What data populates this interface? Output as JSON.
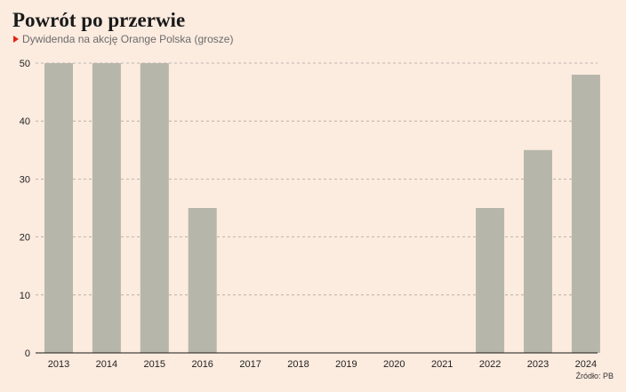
{
  "header": {
    "title": "Powrót po przerwie",
    "subtitle": "Dywidenda na akcję Orange Polska (grosze)"
  },
  "footer": {
    "source": "Źródło: PB"
  },
  "colors": {
    "background": "#fcebdf",
    "bar": "#b7b6aa",
    "marker": "#e2231a",
    "grid": "#a9a59e"
  },
  "chart_data": {
    "type": "bar",
    "categories": [
      "2013",
      "2014",
      "2015",
      "2016",
      "2017",
      "2018",
      "2019",
      "2020",
      "2021",
      "2022",
      "2023",
      "2024"
    ],
    "values": [
      50,
      50,
      50,
      25,
      0,
      0,
      0,
      0,
      0,
      25,
      35,
      48
    ],
    "title": "Powrót po przerwie",
    "subtitle": "Dywidenda na akcję Orange Polska (grosze)",
    "xlabel": "",
    "ylabel": "",
    "ylim": [
      0,
      50
    ],
    "yticks": [
      0,
      10,
      20,
      30,
      40,
      50
    ],
    "grid": "horizontal dashed",
    "legend": "none"
  }
}
